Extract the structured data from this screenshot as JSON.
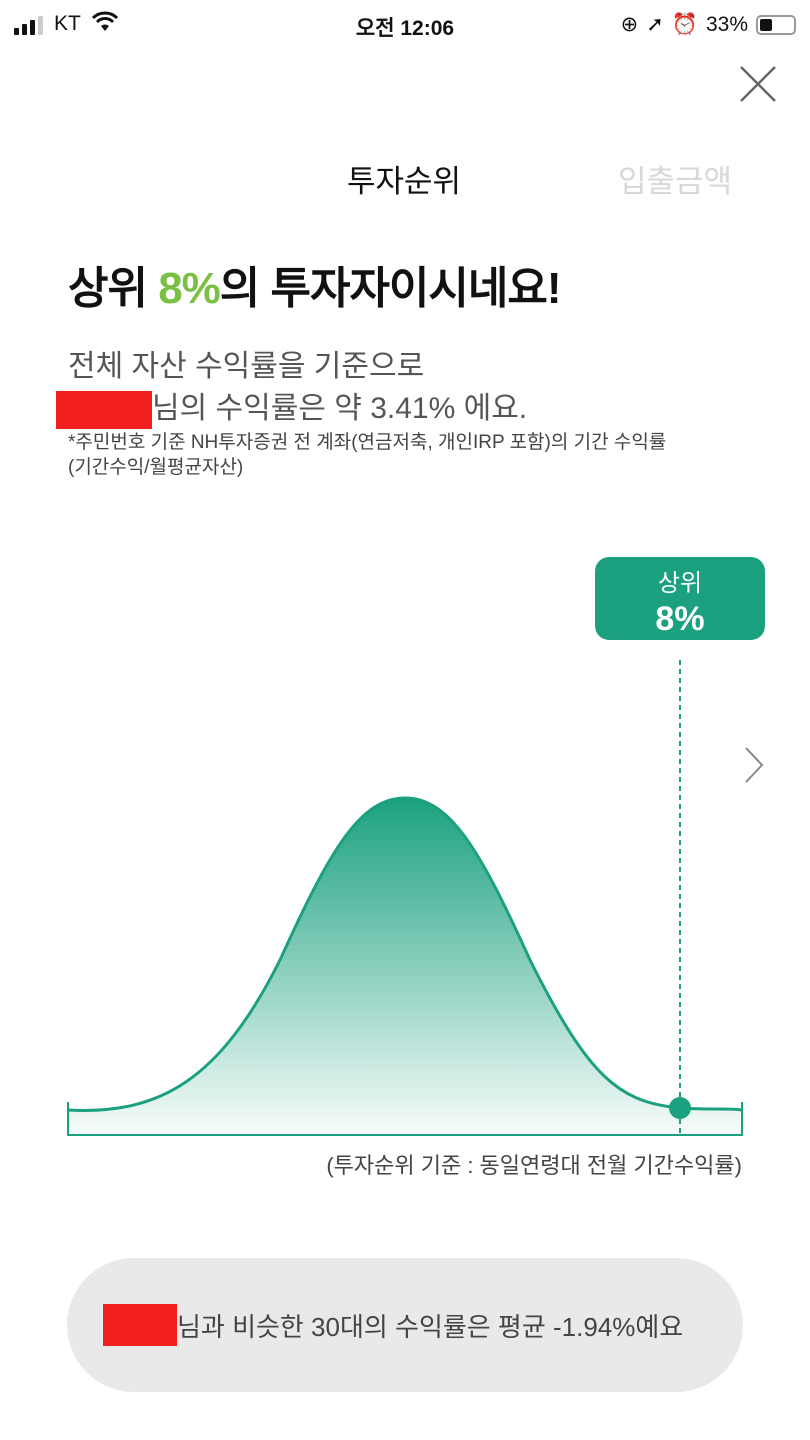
{
  "status_bar": {
    "carrier": "KT",
    "time": "오전 12:06",
    "battery": "33%",
    "battery_level": 0.33
  },
  "tabs": [
    {
      "label": "투자순위",
      "active": true
    },
    {
      "label": "입출금액",
      "active": false
    }
  ],
  "headline": {
    "prefix": "상위 ",
    "highlight": "8%",
    "suffix": "의 투자자이시네요!",
    "highlight_color": "#7ac143"
  },
  "summary": {
    "line1": "전체 자산 수익률을 기준으로",
    "line2": "님의 수익률은 약 3.41% 에요."
  },
  "footnote": {
    "line1": "*주민번호 기준 NH투자증권 전 계좌(연금저축, 개인IRP 포함)의 기간 수익률",
    "line2": "(기간수익/월평균자산)"
  },
  "badge": {
    "label": "상위",
    "value": "8%",
    "color": "#1ba17f"
  },
  "caption": "(투자순위 기준 : 동일연령대 전월 기간수익률)",
  "comparison": "님과 비슷한 30대의 수익률은 평균 -1.94%예요",
  "colors": {
    "accent": "#1ba17f",
    "redaction": "#f21f1f"
  }
}
